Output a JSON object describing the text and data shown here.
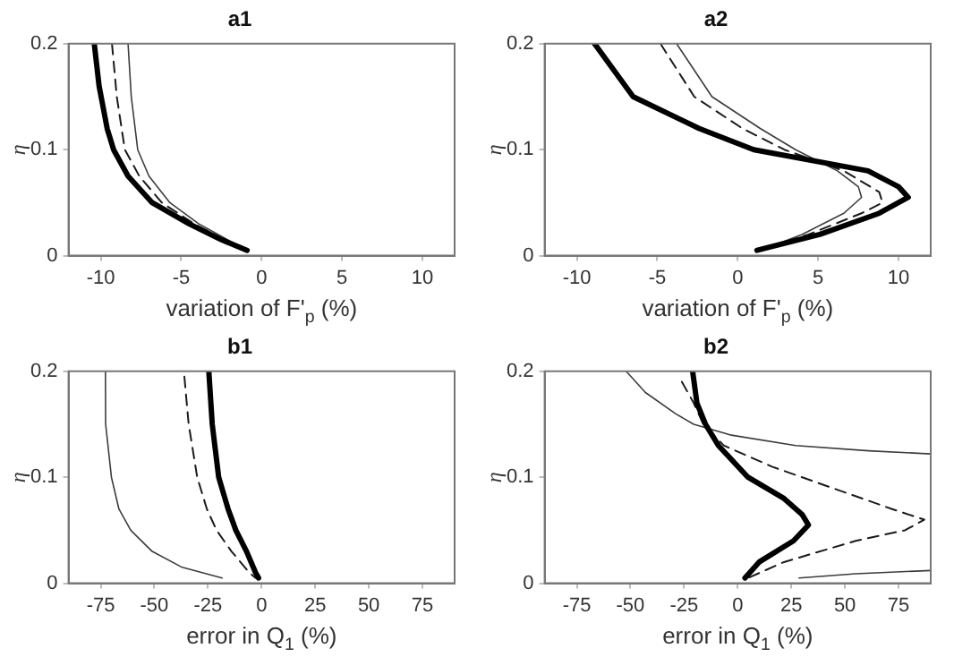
{
  "chart_data": [
    {
      "type": "line",
      "title": "a1",
      "xlabel": "variation of F'$_{p}$ (%)",
      "ylabel": "η",
      "xlim": [
        -12,
        12
      ],
      "xticks": [
        -10,
        -5,
        0,
        5,
        10
      ],
      "ylim": [
        0,
        0.2
      ],
      "yticks": [
        0,
        0.1,
        0.2
      ],
      "grid": false,
      "legend": false,
      "marker": "none",
      "series": [
        {
          "color": "#000000",
          "line_style": "solid",
          "x": [
            -10.4,
            -10.1,
            -9.6,
            -9.2,
            -8.3,
            -6.8,
            -4.5,
            -2.5,
            -0.9
          ],
          "values": [
            0.2,
            0.16,
            0.12,
            0.1,
            0.075,
            0.05,
            0.03,
            0.015,
            0.005
          ]
        },
        {
          "color": "#1a1a1a",
          "line_style": "dashed",
          "x": [
            -9.3,
            -9.0,
            -8.5,
            -7.6,
            -6.2,
            -4.2,
            -2.3,
            -1.0
          ],
          "values": [
            0.2,
            0.15,
            0.1,
            0.075,
            0.05,
            0.03,
            0.015,
            0.005
          ]
        },
        {
          "color": "#3c3c3c",
          "line_style": "solid",
          "x": [
            -8.3,
            -8.1,
            -7.7,
            -7.0,
            -5.7,
            -3.9,
            -2.1,
            -1.0
          ],
          "values": [
            0.2,
            0.15,
            0.1,
            0.075,
            0.05,
            0.03,
            0.015,
            0.005
          ]
        }
      ]
    },
    {
      "type": "line",
      "title": "a2",
      "xlabel": "variation of F'$_{p}$ (%)",
      "ylabel": "η",
      "xlim": [
        -12,
        12
      ],
      "xticks": [
        -10,
        -5,
        0,
        5,
        10
      ],
      "ylim": [
        0,
        0.2
      ],
      "yticks": [
        0,
        0.1,
        0.2
      ],
      "grid": false,
      "legend": false,
      "marker": "none",
      "series": [
        {
          "color": "#000000",
          "line_style": "solid",
          "x": [
            -8.9,
            -6.5,
            -2.4,
            1.0,
            8.1,
            10.0,
            10.6,
            8.8,
            5.1,
            1.2
          ],
          "values": [
            0.2,
            0.15,
            0.12,
            0.1,
            0.08,
            0.065,
            0.055,
            0.04,
            0.02,
            0.005
          ]
        },
        {
          "color": "#1a1a1a",
          "line_style": "dashed",
          "x": [
            -4.8,
            -2.7,
            0.3,
            2.9,
            6.6,
            8.8,
            9.0,
            7.7,
            4.4,
            1.4
          ],
          "values": [
            0.2,
            0.15,
            0.12,
            0.1,
            0.08,
            0.06,
            0.05,
            0.04,
            0.02,
            0.005
          ]
        },
        {
          "color": "#3c3c3c",
          "line_style": "solid",
          "x": [
            -3.8,
            -1.6,
            1.4,
            3.6,
            6.2,
            7.5,
            7.7,
            6.6,
            4.0,
            1.4
          ],
          "values": [
            0.2,
            0.15,
            0.12,
            0.1,
            0.08,
            0.065,
            0.055,
            0.04,
            0.02,
            0.005
          ]
        }
      ]
    },
    {
      "type": "line",
      "title": "b1",
      "xlabel": "error in Q$_{1}$ (%)",
      "ylabel": "η",
      "xlim": [
        -90,
        90
      ],
      "xticks": [
        -75,
        -50,
        -25,
        0,
        25,
        50,
        75
      ],
      "ylim": [
        0,
        0.2
      ],
      "yticks": [
        0,
        0.1,
        0.2
      ],
      "grid": false,
      "legend": false,
      "marker": "none",
      "series": [
        {
          "color": "#000000",
          "line_style": "solid",
          "x": [
            -24.6,
            -23,
            -20,
            -15.6,
            -12,
            -7,
            -2.8,
            -1.4
          ],
          "values": [
            0.2,
            0.15,
            0.1,
            0.07,
            0.05,
            0.03,
            0.01,
            0.005
          ]
        },
        {
          "color": "#1a1a1a",
          "line_style": "dashed",
          "x": [
            -36,
            -34,
            -30,
            -25.5,
            -21,
            -14,
            -5.7,
            -2.8
          ],
          "values": [
            0.195,
            0.15,
            0.1,
            0.07,
            0.05,
            0.03,
            0.01,
            0.005
          ]
        },
        {
          "color": "#3c3c3c",
          "line_style": "solid",
          "x": [
            -72.8,
            -72.7,
            -70,
            -66.5,
            -61,
            -51,
            -37,
            -18.4
          ],
          "values": [
            0.2,
            0.15,
            0.1,
            0.07,
            0.05,
            0.03,
            0.015,
            0.005
          ]
        }
      ]
    },
    {
      "type": "line",
      "title": "b2",
      "xlabel": "error in Q$_{1}$ (%)",
      "ylabel": "η",
      "xlim": [
        -90,
        90
      ],
      "xticks": [
        -75,
        -50,
        -25,
        0,
        25,
        50,
        75
      ],
      "ylim": [
        0,
        0.2
      ],
      "yticks": [
        0,
        0.1,
        0.2
      ],
      "grid": false,
      "legend": false,
      "marker": "none",
      "series": [
        {
          "color": "#000000",
          "line_style": "solid",
          "x": [
            -21,
            -19,
            -15,
            -9,
            4.8,
            21.6,
            30,
            33,
            26,
            10,
            3.4
          ],
          "values": [
            0.2,
            0.17,
            0.15,
            0.13,
            0.1,
            0.08,
            0.065,
            0.055,
            0.04,
            0.02,
            0.005
          ]
        },
        {
          "color": "#1a1a1a",
          "line_style": "dashed",
          "x": [
            -26,
            -20.5,
            -16,
            -6.5,
            16,
            44,
            72,
            87,
            78,
            55,
            21.6,
            4.8
          ],
          "values": [
            0.19,
            0.17,
            0.15,
            0.13,
            0.11,
            0.09,
            0.07,
            0.06,
            0.05,
            0.04,
            0.02,
            0.005
          ]
        },
        {
          "color": "#3c3c3c",
          "line_style": "solid",
          "x": [
            -52,
            -43,
            -29,
            -20.5,
            -3.6,
            27,
            61,
            90,
            60,
            28.6,
            55,
            90
          ],
          "values": [
            0.2,
            0.18,
            0.16,
            0.15,
            0.14,
            0.13,
            0.125,
            0.122,
            null,
            0.005,
            0.009,
            0.012
          ]
        }
      ]
    }
  ]
}
